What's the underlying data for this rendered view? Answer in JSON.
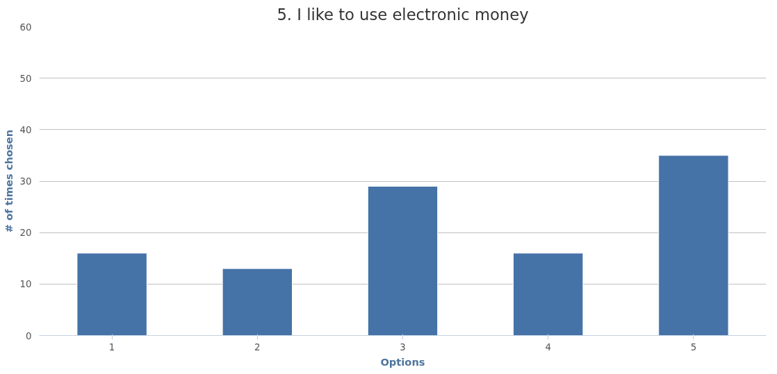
{
  "chart_data": {
    "type": "bar",
    "title": "5. I like to use electronic money",
    "xlabel": "Options",
    "ylabel": "# of times chosen",
    "categories": [
      "1",
      "2",
      "3",
      "4",
      "5"
    ],
    "values": [
      16,
      13,
      29,
      16,
      35
    ],
    "color": "#4572a7",
    "ylim": [
      0,
      60
    ],
    "yticks": [
      0,
      10,
      20,
      30,
      40,
      50,
      60
    ],
    "grid": "y"
  }
}
